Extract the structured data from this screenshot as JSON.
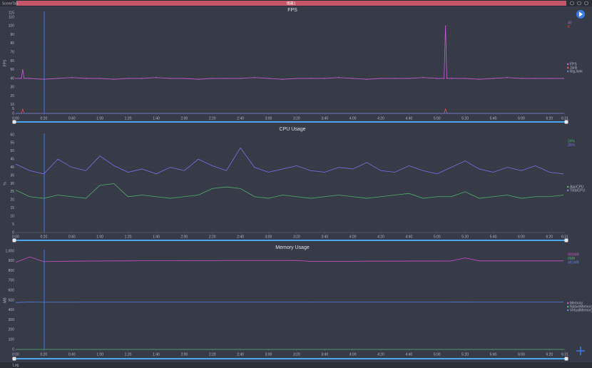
{
  "header": {
    "tab": "SceneTab",
    "scene": "场景1"
  },
  "footer": {
    "log": "Log"
  },
  "chart_data": [
    {
      "type": "line",
      "title": "FPS",
      "ylabel": "FPS",
      "grid": true,
      "x": [
        0,
        4,
        5,
        6,
        10,
        20,
        30,
        40,
        50,
        60,
        70,
        80,
        90,
        100,
        110,
        120,
        130,
        140,
        150,
        160,
        170,
        180,
        190,
        200,
        210,
        220,
        230,
        240,
        250,
        260,
        270,
        280,
        290,
        300,
        305,
        306,
        307,
        310,
        320,
        330,
        340,
        350,
        360,
        370,
        380,
        390
      ],
      "series": [
        {
          "name": "FPS",
          "color": "#c65cd6",
          "values": [
            40,
            40,
            50,
            40,
            40,
            39,
            40,
            41,
            40,
            40,
            39,
            40,
            40,
            41,
            40,
            40,
            39,
            40,
            40,
            40,
            41,
            40,
            39,
            40,
            40,
            40,
            41,
            40,
            39,
            40,
            40,
            40,
            41,
            40,
            40,
            100,
            40,
            40,
            40,
            39,
            40,
            41,
            40,
            40,
            40,
            40
          ]
        },
        {
          "name": "Jank",
          "color": "#e05555",
          "values": [
            0,
            0,
            5,
            0,
            0,
            0,
            0,
            0,
            0,
            0,
            0,
            0,
            0,
            0,
            0,
            0,
            0,
            0,
            0,
            0,
            0,
            0,
            0,
            0,
            0,
            0,
            0,
            0,
            0,
            0,
            0,
            0,
            0,
            0,
            0,
            5,
            0,
            0,
            0,
            0,
            0,
            0,
            0,
            0,
            0,
            0
          ]
        },
        {
          "name": "BigJank",
          "color": "#5a7fe0",
          "values": [
            0,
            0,
            0,
            0,
            0,
            0,
            0,
            0,
            0,
            0,
            0,
            0,
            0,
            0,
            0,
            0,
            0,
            0,
            0,
            0,
            0,
            0,
            0,
            0,
            0,
            0,
            0,
            0,
            0,
            0,
            0,
            0,
            0,
            0,
            0,
            0,
            0,
            0,
            0,
            0,
            0,
            0,
            0,
            0,
            0,
            0
          ]
        }
      ],
      "annotations": [
        "40",
        "6"
      ],
      "xlim": [
        0,
        391
      ],
      "ylim": [
        0,
        115
      ],
      "xticks": [
        {
          "value": 0,
          "label": "0:00"
        },
        {
          "value": 20,
          "label": "0:20"
        },
        {
          "value": 40,
          "label": "0:40"
        },
        {
          "value": 60,
          "label": "1:00"
        },
        {
          "value": 80,
          "label": "1:20"
        },
        {
          "value": 100,
          "label": "1:40"
        },
        {
          "value": 120,
          "label": "2:00"
        },
        {
          "value": 140,
          "label": "2:20"
        },
        {
          "value": 160,
          "label": "2:40"
        },
        {
          "value": 180,
          "label": "3:00"
        },
        {
          "value": 200,
          "label": "3:20"
        },
        {
          "value": 220,
          "label": "3:40"
        },
        {
          "value": 240,
          "label": "4:00"
        },
        {
          "value": 260,
          "label": "4:20"
        },
        {
          "value": 280,
          "label": "4:40"
        },
        {
          "value": 300,
          "label": "5:00"
        },
        {
          "value": 320,
          "label": "5:20"
        },
        {
          "value": 340,
          "label": "5:40"
        },
        {
          "value": 360,
          "label": "6:00"
        },
        {
          "value": 380,
          "label": "6:20"
        },
        {
          "value": 391,
          "label": "6:31"
        }
      ],
      "yticks": [
        0,
        5,
        10,
        20,
        30,
        40,
        50,
        60,
        70,
        80,
        90,
        100,
        110,
        115
      ]
    },
    {
      "type": "line",
      "title": "CPU Usage",
      "ylabel": "%",
      "grid": true,
      "x": [
        0,
        10,
        20,
        30,
        40,
        50,
        60,
        70,
        80,
        90,
        100,
        110,
        120,
        130,
        140,
        150,
        160,
        170,
        180,
        190,
        200,
        210,
        220,
        230,
        240,
        250,
        260,
        270,
        280,
        290,
        300,
        310,
        320,
        330,
        340,
        350,
        360,
        370,
        380,
        390
      ],
      "series": [
        {
          "name": "AppCPU",
          "color": "#4fae6a",
          "values": [
            26,
            22,
            21,
            23,
            22,
            21,
            29,
            30,
            22,
            23,
            22,
            21,
            22,
            23,
            27,
            28,
            27,
            22,
            21,
            23,
            22,
            21,
            22,
            23,
            22,
            21,
            22,
            23,
            24,
            21,
            22,
            22,
            25,
            21,
            22,
            23,
            21,
            22,
            22,
            23
          ]
        },
        {
          "name": "TotalCPU",
          "color": "#7a6fe6",
          "values": [
            42,
            38,
            36,
            45,
            40,
            38,
            47,
            41,
            37,
            39,
            36,
            40,
            38,
            45,
            41,
            38,
            52,
            40,
            37,
            39,
            41,
            38,
            37,
            40,
            39,
            43,
            38,
            37,
            41,
            38,
            36,
            40,
            44,
            39,
            37,
            40,
            38,
            41,
            37,
            36
          ]
        }
      ],
      "annotations": [
        "24%",
        "35%"
      ],
      "xlim": [
        0,
        391
      ],
      "ylim": [
        0,
        60
      ],
      "xticks": [
        {
          "value": 0,
          "label": "0:00"
        },
        {
          "value": 20,
          "label": "0:20"
        },
        {
          "value": 40,
          "label": "0:40"
        },
        {
          "value": 60,
          "label": "1:00"
        },
        {
          "value": 80,
          "label": "1:20"
        },
        {
          "value": 100,
          "label": "1:40"
        },
        {
          "value": 120,
          "label": "2:00"
        },
        {
          "value": 140,
          "label": "2:20"
        },
        {
          "value": 160,
          "label": "2:40"
        },
        {
          "value": 180,
          "label": "3:00"
        },
        {
          "value": 200,
          "label": "3:20"
        },
        {
          "value": 220,
          "label": "3:40"
        },
        {
          "value": 240,
          "label": "4:00"
        },
        {
          "value": 260,
          "label": "4:20"
        },
        {
          "value": 280,
          "label": "4:40"
        },
        {
          "value": 300,
          "label": "5:00"
        },
        {
          "value": 320,
          "label": "5:20"
        },
        {
          "value": 340,
          "label": "5:40"
        },
        {
          "value": 360,
          "label": "6:00"
        },
        {
          "value": 380,
          "label": "6:20"
        },
        {
          "value": 391,
          "label": "6:31"
        }
      ],
      "yticks": [
        0,
        5,
        10,
        15,
        20,
        25,
        30,
        35,
        40,
        45,
        50,
        55,
        60
      ]
    },
    {
      "type": "line",
      "title": "Memory Usage",
      "ylabel": "MB",
      "grid": true,
      "x": [
        0,
        10,
        20,
        30,
        40,
        50,
        60,
        70,
        80,
        90,
        100,
        110,
        120,
        130,
        140,
        150,
        160,
        170,
        180,
        190,
        200,
        210,
        220,
        230,
        240,
        250,
        260,
        270,
        280,
        290,
        300,
        310,
        320,
        330,
        340,
        350,
        360,
        370,
        380,
        390
      ],
      "series": [
        {
          "name": "Memory",
          "color": "#c94fc9",
          "values": [
            885,
            940,
            892,
            895,
            897,
            898,
            899,
            900,
            900,
            901,
            902,
            902,
            903,
            903,
            903,
            904,
            904,
            904,
            904,
            904,
            905,
            895,
            895,
            896,
            896,
            897,
            897,
            897,
            898,
            898,
            898,
            899,
            930,
            900,
            900,
            900,
            900,
            900,
            900,
            900
          ]
        },
        {
          "name": "NativeMemory",
          "color": "#4fae6a",
          "values": [
            0,
            0,
            0,
            0,
            0,
            0,
            0,
            0,
            0,
            0,
            0,
            0,
            0,
            0,
            0,
            0,
            0,
            0,
            0,
            0,
            0,
            0,
            0,
            0,
            0,
            0,
            0,
            0,
            0,
            0,
            0,
            0,
            0,
            0,
            0,
            0,
            0,
            0,
            0,
            0
          ]
        },
        {
          "name": "VirtualMemory",
          "color": "#5a7fe0",
          "values": [
            478,
            482,
            480,
            480,
            480,
            481,
            481,
            481,
            481,
            481,
            482,
            482,
            482,
            482,
            482,
            482,
            482,
            482,
            482,
            482,
            482,
            481,
            481,
            481,
            481,
            481,
            481,
            481,
            481,
            481,
            481,
            481,
            483,
            481,
            481,
            481,
            481,
            481,
            481,
            481
          ]
        }
      ],
      "annotations": [
        "900MB",
        "0MB",
        "481MB"
      ],
      "xlim": [
        0,
        391
      ],
      "ylim": [
        0,
        1000
      ],
      "xticks": [
        {
          "value": 0,
          "label": "0:00"
        },
        {
          "value": 20,
          "label": "0:20"
        },
        {
          "value": 40,
          "label": "0:40"
        },
        {
          "value": 60,
          "label": "1:00"
        },
        {
          "value": 80,
          "label": "1:20"
        },
        {
          "value": 100,
          "label": "1:40"
        },
        {
          "value": 120,
          "label": "2:00"
        },
        {
          "value": 140,
          "label": "2:20"
        },
        {
          "value": 160,
          "label": "2:40"
        },
        {
          "value": 180,
          "label": "3:00"
        },
        {
          "value": 200,
          "label": "3:20"
        },
        {
          "value": 220,
          "label": "3:40"
        },
        {
          "value": 240,
          "label": "4:00"
        },
        {
          "value": 260,
          "label": "4:20"
        },
        {
          "value": 280,
          "label": "4:40"
        },
        {
          "value": 300,
          "label": "5:00"
        },
        {
          "value": 320,
          "label": "5:20"
        },
        {
          "value": 340,
          "label": "5:40"
        },
        {
          "value": 360,
          "label": "6:00"
        },
        {
          "value": 380,
          "label": "6:20"
        },
        {
          "value": 391,
          "label": "6:31"
        }
      ],
      "yticks": [
        0,
        100,
        200,
        300,
        400,
        500,
        600,
        700,
        800,
        900,
        {
          "value": 1000,
          "label": "1,000"
        }
      ]
    }
  ]
}
